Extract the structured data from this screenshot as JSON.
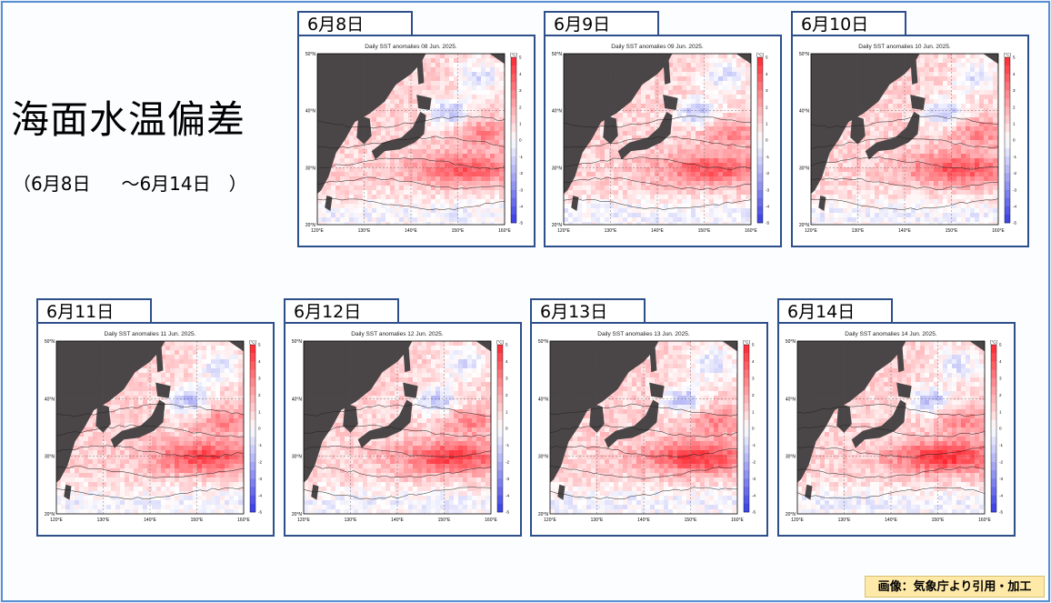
{
  "title": "海面水温偏差",
  "subtitle": {
    "start": "（6月8日",
    "end": "～6月14日　）"
  },
  "credit": "画像：気象庁より引用・加工",
  "colors": {
    "warm": "#e8333a",
    "cool": "#3d43d6",
    "land": "#4a4546",
    "frame": "#2d4f8a"
  },
  "axes": {
    "lat_labels": [
      "50°N",
      "40°N",
      "30°N",
      "20°N"
    ],
    "lon_labels": [
      "120°E",
      "130°E",
      "140°E",
      "150°E",
      "160°E"
    ],
    "colorbar_unit": "[°C]",
    "colorbar_ticks": [
      "5",
      "4",
      "3",
      "2",
      "1",
      "0",
      "-1",
      "-2",
      "-3",
      "-4",
      "-5"
    ]
  },
  "maps": [
    {
      "tab": "6月8日",
      "title": "Daily SST anomalies 08 Jun. 2025."
    },
    {
      "tab": "6月9日",
      "title": "Daily SST anomalies 09 Jun. 2025."
    },
    {
      "tab": "6月10日",
      "title": "Daily SST anomalies 10 Jun. 2025."
    },
    {
      "tab": "6月11日",
      "title": "Daily SST anomalies 11 Jun. 2025."
    },
    {
      "tab": "6月12日",
      "title": "Daily SST anomalies 12 Jun. 2025."
    },
    {
      "tab": "6月13日",
      "title": "Daily SST anomalies 13 Jun. 2025."
    },
    {
      "tab": "6月14日",
      "title": "Daily SST anomalies 14 Jun. 2025."
    }
  ]
}
